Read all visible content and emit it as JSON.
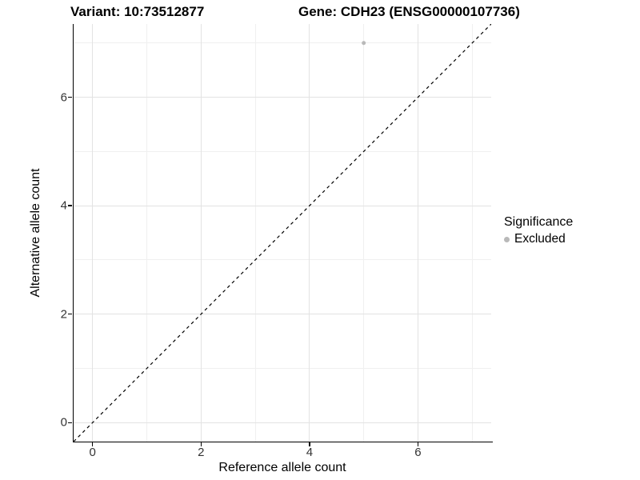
{
  "title": {
    "variant": "Variant: 10:73512877",
    "gene": "Gene: CDH23 (ENSG00000107736)"
  },
  "chart_data": {
    "type": "scatter",
    "title": "Variant: 10:73512877   Gene: CDH23 (ENSG00000107736)",
    "xlabel": "Reference allele count",
    "ylabel": "Alternative allele count",
    "xlim": [
      -0.35,
      7.35
    ],
    "ylim": [
      -0.35,
      7.35
    ],
    "x_ticks": [
      0,
      2,
      4,
      6
    ],
    "y_ticks": [
      0,
      2,
      4,
      6
    ],
    "x_minor_ticks": [
      1,
      3,
      5,
      7
    ],
    "y_minor_ticks": [
      1,
      3,
      5,
      7
    ],
    "grid": "on",
    "series": [
      {
        "name": "Excluded",
        "color": "#b9b9b9",
        "point_radius": 2.5,
        "points": [
          [
            5,
            7
          ]
        ]
      }
    ],
    "identity_line": {
      "style": "dashed",
      "color": "#000000",
      "x": [
        -0.35,
        7.35
      ],
      "y": [
        -0.35,
        7.35
      ]
    },
    "legend": {
      "title": "Significance",
      "position": "right",
      "entries": [
        {
          "label": "Excluded",
          "color": "#b9b9b9"
        }
      ]
    }
  },
  "colors": {
    "grid_major": "#e3e3e3",
    "grid_minor": "#f0f0f0",
    "axis_line": "#000000",
    "tick_label": "#333333"
  }
}
